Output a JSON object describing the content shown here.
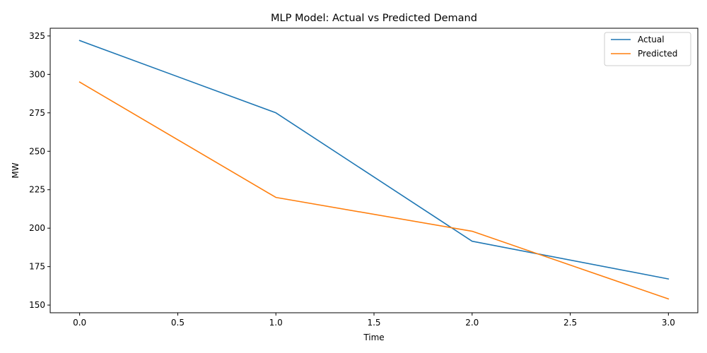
{
  "chart_data": {
    "type": "line",
    "title": "MLP Model: Actual vs Predicted Demand",
    "xlabel": "Time",
    "ylabel": "MW",
    "xlim": [
      -0.15,
      3.15
    ],
    "ylim": [
      145,
      330
    ],
    "xticks": [
      0.0,
      0.5,
      1.0,
      1.5,
      2.0,
      2.5,
      3.0
    ],
    "xtick_labels": [
      "0.0",
      "0.5",
      "1.0",
      "1.5",
      "2.0",
      "2.5",
      "3.0"
    ],
    "yticks": [
      150,
      175,
      200,
      225,
      250,
      275,
      300,
      325
    ],
    "ytick_labels": [
      "150",
      "175",
      "200",
      "225",
      "250",
      "275",
      "300",
      "325"
    ],
    "grid": false,
    "legend_position": "top-right",
    "x": [
      0,
      1,
      2,
      3
    ],
    "series": [
      {
        "name": "Actual",
        "color": "#1f77b4",
        "values": [
          322,
          275,
          191.5,
          167
        ]
      },
      {
        "name": "Predicted",
        "color": "#ff7f0e",
        "values": [
          295,
          220,
          198,
          154
        ]
      }
    ]
  }
}
